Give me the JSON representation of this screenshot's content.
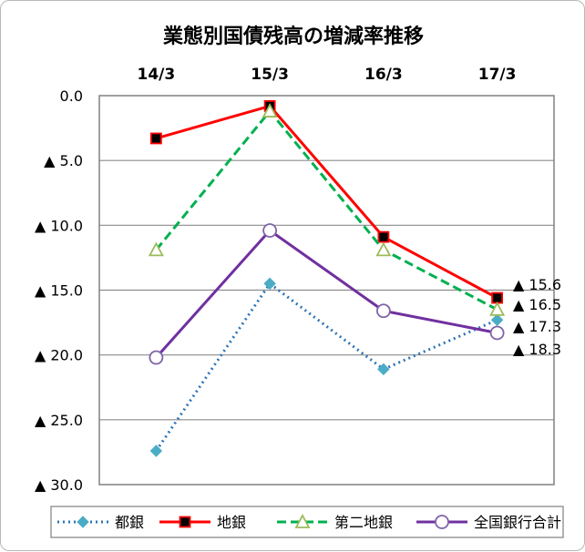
{
  "chart_data": {
    "type": "line",
    "title": "業態別国債残高の増減率推移",
    "categories": [
      "14/3",
      "15/3",
      "16/3",
      "17/3"
    ],
    "y_axis": {
      "min": 0,
      "max": 30,
      "step": 5,
      "inverted": true,
      "tick_labels": [
        "0.0",
        "▲ 5.0",
        "▲ 10.0",
        "▲ 15.0",
        "▲ 20.0",
        "▲ 25.0",
        "▲ 30.0"
      ]
    },
    "grid": "horizontal",
    "legend_position": "bottom",
    "series": [
      {
        "name": "都銀",
        "color": "#2E75B6",
        "style": "dotted",
        "marker": "diamond",
        "values": [
          27.4,
          14.5,
          21.1,
          17.3
        ]
      },
      {
        "name": "地銀",
        "color": "#FF0000",
        "style": "solid",
        "marker": "square",
        "values": [
          3.3,
          0.8,
          10.9,
          15.6
        ]
      },
      {
        "name": "第二地銀",
        "color": "#00B050",
        "style": "dashed",
        "marker": "triangle",
        "values": [
          11.9,
          1.2,
          11.9,
          16.5
        ]
      },
      {
        "name": "全国銀行合計",
        "color": "#7030A0",
        "style": "solid",
        "marker": "circle",
        "values": [
          20.2,
          10.4,
          16.6,
          18.3
        ]
      }
    ],
    "data_labels": [
      "▲ 15.6",
      "▲ 16.5",
      "▲ 17.3",
      "▲ 18.3"
    ]
  }
}
